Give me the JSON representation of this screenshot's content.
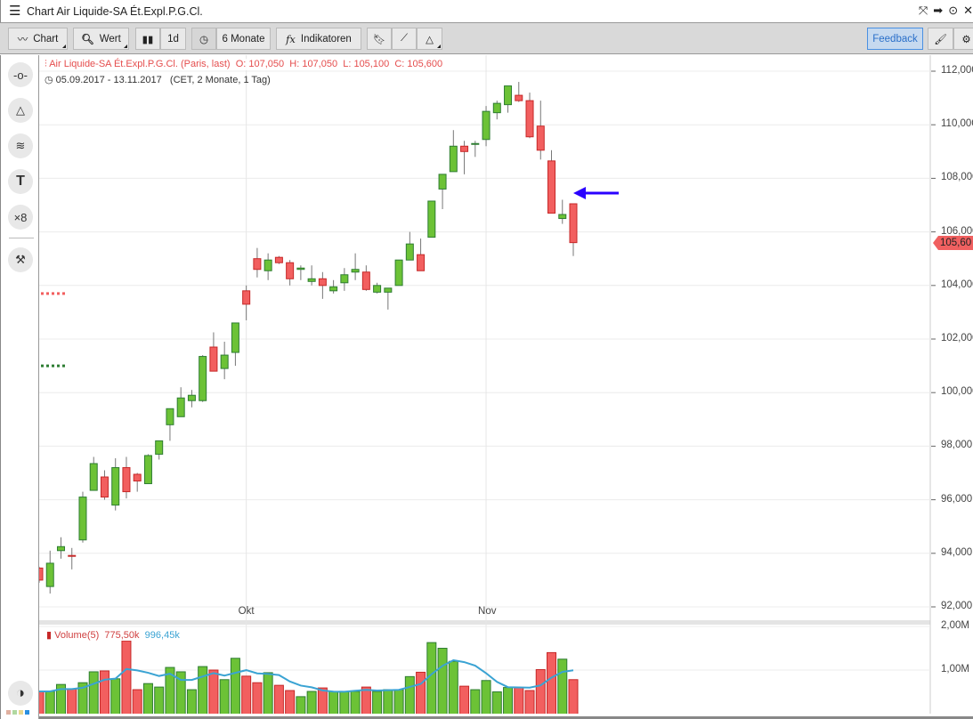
{
  "window": {
    "title": "Chart Air Liquide-SA Ét.Expl.P.G.Cl."
  },
  "toolbar": {
    "chart": "Chart",
    "wert": "Wert",
    "interval": "1d",
    "range": "6 Monate",
    "indicators_icon": "fx",
    "indicators": "Indikatoren",
    "feedback": "Feedback"
  },
  "legend": {
    "name": "Air Liquide-SA Ét.Expl.P.G.Cl. (Paris, last)",
    "o": "O: 107,050",
    "h": "H: 107,050",
    "l": "L: 105,100",
    "c": "C: 105,600",
    "dates": "05.09.2017 - 13.11.2017",
    "info": "(CET, 2 Monate, 1 Tag)"
  },
  "volume_legend": {
    "name": "Volume(5)",
    "last": "775,50k",
    "ma": "996,45k"
  },
  "last_price_tag": "105,60",
  "colors": {
    "up": "#6cc236",
    "up_border": "#2e7d32",
    "down": "#f25f5f",
    "down_border": "#c62828",
    "ma": "#3aa3d3",
    "arrow": "#2a00ff",
    "feedback": "#2a6fc9"
  },
  "chart_data": {
    "type": "candlestick",
    "y_ticks": [
      "112,000",
      "110,000",
      "108,000",
      "106,000",
      "104,000",
      "102,000",
      "100,000",
      "98,000",
      "96,000",
      "94,000",
      "92,000"
    ],
    "ylim": [
      91.6,
      112.6
    ],
    "x_ticks": [
      {
        "label": "Okt",
        "index": 19
      },
      {
        "label": "Nov",
        "index": 41
      }
    ],
    "volume_ticks": [
      "2,00M",
      "1,00M"
    ],
    "open": [
      93.45,
      92.76,
      94.1,
      93.92,
      94.5,
      96.35,
      96.85,
      95.8,
      97.2,
      96.95,
      96.6,
      97.7,
      98.8,
      99.1,
      99.7,
      99.7,
      101.7,
      100.9,
      101.5,
      103.8,
      105.0,
      104.55,
      105.05,
      104.85,
      104.6,
      104.15,
      104.25,
      103.8,
      104.1,
      104.5,
      104.5,
      103.75,
      103.75,
      104.0,
      104.95,
      105.15,
      105.8,
      107.6,
      108.25,
      109.2,
      109.3,
      109.45,
      110.45,
      110.75,
      111.1,
      110.9,
      109.95,
      108.65,
      106.5,
      107.05
    ],
    "high": [
      93.5,
      94.1,
      94.6,
      94.2,
      96.3,
      97.6,
      97.1,
      97.55,
      97.6,
      97.0,
      97.7,
      98.2,
      99.4,
      100.2,
      100.1,
      101.4,
      102.25,
      101.9,
      102.6,
      104.0,
      105.4,
      105.2,
      105.1,
      104.95,
      104.75,
      104.75,
      104.5,
      104.2,
      104.65,
      105.2,
      104.75,
      104.1,
      103.9,
      104.95,
      106.0,
      105.75,
      107.15,
      108.15,
      109.8,
      109.4,
      109.4,
      110.7,
      110.9,
      111.45,
      111.6,
      111.2,
      110.9,
      109.05,
      107.2,
      107.05
    ],
    "low": [
      92.9,
      92.5,
      93.8,
      93.4,
      94.4,
      96.35,
      96.0,
      95.6,
      96.05,
      96.3,
      96.6,
      97.5,
      98.2,
      99.1,
      99.45,
      99.65,
      100.8,
      100.5,
      101.0,
      102.7,
      104.3,
      104.2,
      104.8,
      104.0,
      104.2,
      104.0,
      103.5,
      103.7,
      103.8,
      104.2,
      103.8,
      103.7,
      103.1,
      104.0,
      104.95,
      104.55,
      105.8,
      106.85,
      108.25,
      108.15,
      108.8,
      109.2,
      110.2,
      110.45,
      110.85,
      109.5,
      108.7,
      106.7,
      106.3,
      105.1
    ],
    "close": [
      93.0,
      93.63,
      94.25,
      93.9,
      96.1,
      97.35,
      96.1,
      97.2,
      96.3,
      96.7,
      97.65,
      98.2,
      99.4,
      99.8,
      99.9,
      101.35,
      100.8,
      101.4,
      102.6,
      103.3,
      104.6,
      104.95,
      104.85,
      104.25,
      104.65,
      104.25,
      104.0,
      103.95,
      104.4,
      104.6,
      103.85,
      104.0,
      103.9,
      104.95,
      105.55,
      104.55,
      107.15,
      108.15,
      109.2,
      109.0,
      109.3,
      110.5,
      110.8,
      111.45,
      110.9,
      109.55,
      109.05,
      106.7,
      106.65,
      105.6
    ],
    "volume_millions": [
      0.51,
      0.51,
      0.67,
      0.57,
      0.71,
      0.96,
      0.98,
      0.8,
      1.67,
      0.55,
      0.69,
      0.61,
      1.06,
      0.96,
      0.55,
      1.08,
      1.0,
      0.78,
      1.27,
      0.86,
      0.71,
      0.94,
      0.65,
      0.53,
      0.39,
      0.51,
      0.59,
      0.51,
      0.51,
      0.51,
      0.61,
      0.51,
      0.55,
      0.55,
      0.85,
      0.95,
      1.63,
      1.5,
      1.2,
      0.63,
      0.55,
      0.76,
      0.5,
      0.6,
      0.6,
      0.53,
      1.01,
      1.4,
      1.25,
      0.78
    ],
    "volume_ma_period": 5,
    "reference_lines": [
      {
        "price": 103.7,
        "color": "#f25f5f"
      },
      {
        "price": 101.0,
        "color": "#2e7d32"
      }
    ],
    "arrow_annotation_price": 107.45
  }
}
